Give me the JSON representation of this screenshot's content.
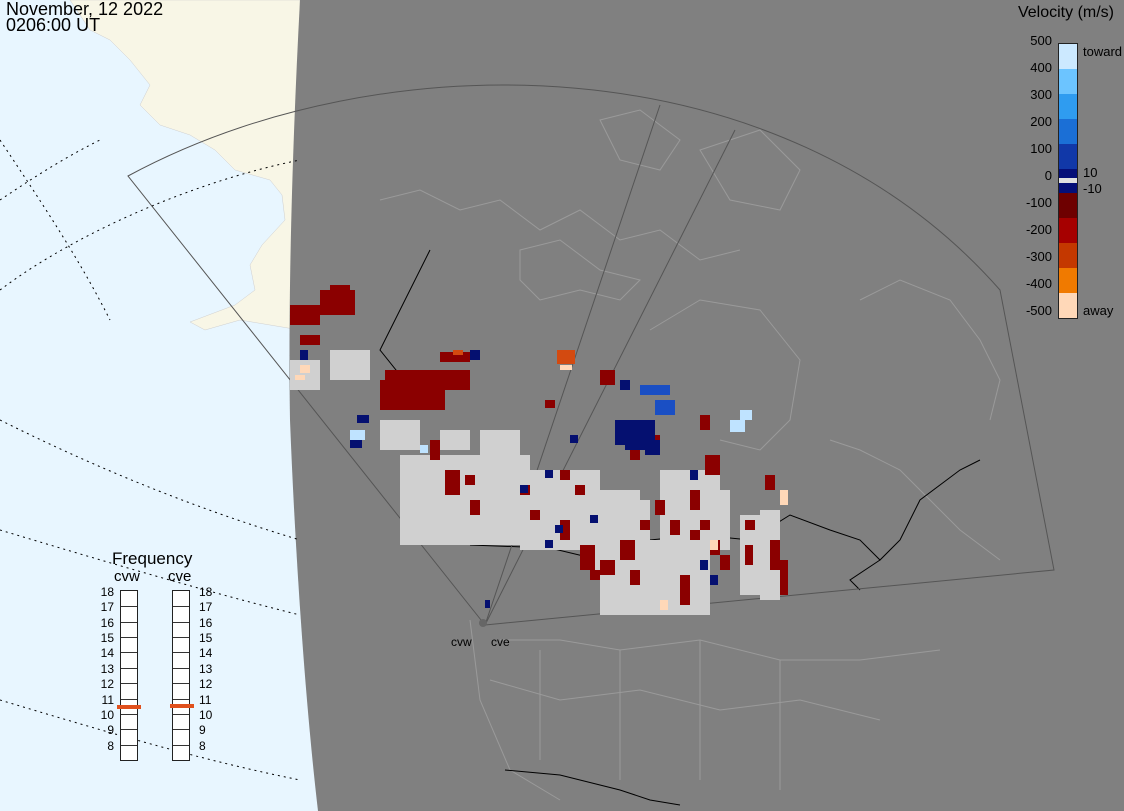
{
  "header": {
    "date": "November, 12 2022",
    "time": "0206:00 UT"
  },
  "legend": {
    "title": "Velocity (m/s)",
    "ticks": [
      "500",
      "400",
      "300",
      "200",
      "100",
      "0",
      "-100",
      "-200",
      "-300",
      "-400",
      "-500"
    ],
    "toward": "toward",
    "away": "away",
    "plus10": "10",
    "minus10": "-10",
    "colors": [
      "#cce9ff",
      "#6cc4ff",
      "#2f9cf0",
      "#1b6fd6",
      "#1138a8",
      "#050f78",
      "#6e0000",
      "#a60000",
      "#c43800",
      "#f07a00",
      "#ffd8b8"
    ]
  },
  "frequency": {
    "title": "Frequency",
    "left_label": "cvw",
    "right_label": "cve",
    "scale": [
      "18",
      "17",
      "16",
      "15",
      "14",
      "13",
      "12",
      "11",
      "10",
      "9",
      "8"
    ],
    "cvw_mhz": 10.5,
    "cve_mhz": 10.6,
    "marker_color": "#e0501c"
  },
  "sites": {
    "west": "cvw",
    "east": "cve"
  },
  "colors": {
    "ocean": "#e8f6ff",
    "night": "#808080",
    "land_day": "#f8f6e6",
    "data_grey": "#d0d0d0"
  }
}
